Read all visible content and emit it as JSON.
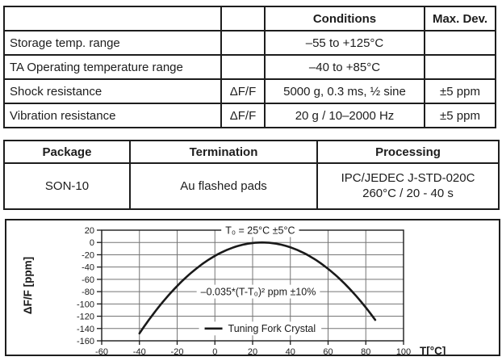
{
  "spec_table": {
    "headers": {
      "param": "",
      "symbol": "",
      "conditions": "Conditions",
      "max_dev": "Max. Dev."
    },
    "rows": [
      {
        "param": "Storage temp. range",
        "symbol": "",
        "conditions": "–55 to +125°C",
        "max_dev": ""
      },
      {
        "param": "TA Operating temperature range",
        "symbol": "",
        "conditions": "–40 to +85°C",
        "max_dev": ""
      },
      {
        "param": "Shock resistance",
        "symbol": "ΔF/F",
        "conditions": "5000 g, 0.3 ms, ½ sine",
        "max_dev": "±5 ppm"
      },
      {
        "param": "Vibration resistance",
        "symbol": "ΔF/F",
        "conditions": "20 g / 10–2000 Hz",
        "max_dev": "±5 ppm"
      }
    ]
  },
  "package_table": {
    "headers": {
      "package": "Package",
      "termination": "Termination",
      "processing": "Processing"
    },
    "row": {
      "package": "SON-10",
      "termination": "Au flashed pads",
      "processing_line1": "IPC/JEDEC J-STD-020C",
      "processing_line2": "260°C / 20 - 40 s"
    }
  },
  "chart_data": {
    "type": "line",
    "title": "",
    "xlabel": "T[°C]",
    "ylabel": "ΔF/F [ppm]",
    "xlim": [
      -60,
      100
    ],
    "ylim": [
      -160,
      20
    ],
    "x_ticks": [
      -60,
      -40,
      -20,
      0,
      20,
      40,
      60,
      80,
      100
    ],
    "y_ticks": [
      20,
      0,
      -20,
      -40,
      -60,
      -80,
      -100,
      -120,
      -140,
      -160
    ],
    "grid": true,
    "legend_position": "inside-bottom-center",
    "colors": {
      "curve": "#1a1a1a",
      "grid": "#757575",
      "axis": "#1a1a1a",
      "background": "#ffffff"
    },
    "annotations": [
      {
        "text": "T₀ = 25°C ±5°C",
        "x": 24,
        "y": 20
      },
      {
        "text": "–0.035*(T-T₀)² ppm ±10%",
        "x": 23,
        "y": -80
      }
    ],
    "legend": {
      "x": 24,
      "y": -140,
      "label": "Tuning Fork Crystal"
    },
    "series": [
      {
        "name": "Tuning Fork Crystal",
        "formula": "y = -0.035*(T-25)^2 ppm",
        "k": -0.035,
        "t0": 25,
        "domain": [
          -40,
          85
        ],
        "points": [
          [
            -40,
            -147.9
          ],
          [
            -30,
            -105.9
          ],
          [
            -20,
            -70.9
          ],
          [
            -10,
            -42.9
          ],
          [
            0,
            -21.9
          ],
          [
            10,
            -7.9
          ],
          [
            20,
            -0.9
          ],
          [
            25,
            0
          ],
          [
            30,
            -0.9
          ],
          [
            40,
            -7.9
          ],
          [
            50,
            -21.9
          ],
          [
            60,
            -42.9
          ],
          [
            70,
            -70.9
          ],
          [
            80,
            -105.9
          ],
          [
            85,
            -126
          ]
        ]
      }
    ]
  }
}
